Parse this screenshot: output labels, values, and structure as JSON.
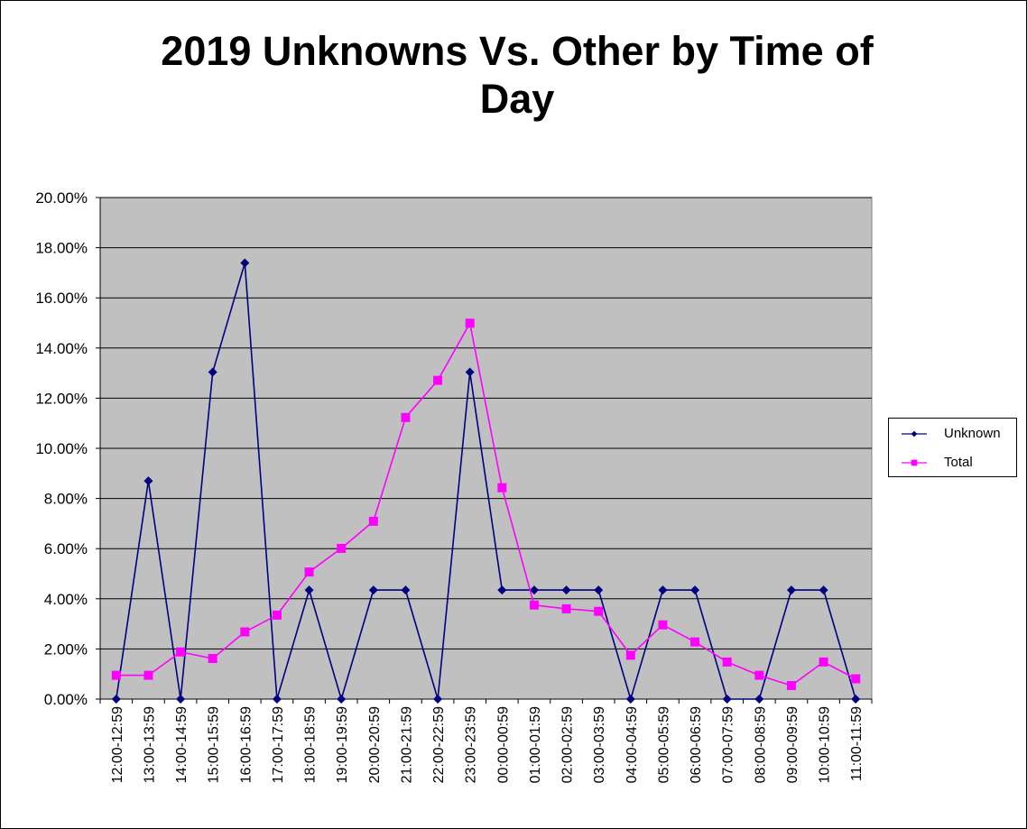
{
  "chart_data": {
    "type": "line",
    "title_lines": [
      "2019 Unknowns Vs. Other by Time of",
      "Day"
    ],
    "xlabel": "",
    "ylabel": "",
    "ylim": [
      0,
      0.2
    ],
    "y_ticks": [
      "0.00%",
      "2.00%",
      "4.00%",
      "6.00%",
      "8.00%",
      "10.00%",
      "12.00%",
      "14.00%",
      "16.00%",
      "18.00%",
      "20.00%"
    ],
    "grid": true,
    "legend_position": "right",
    "plot_background": "#C0C0C0",
    "categories": [
      "12:00-12:59",
      "13:00-13:59",
      "14:00-14:59",
      "15:00-15:59",
      "16:00-16:59",
      "17:00-17:59",
      "18:00-18:59",
      "19:00-19:59",
      "20:00-20:59",
      "21:00-21:59",
      "22:00-22:59",
      "23:00-23:59",
      "00:00-00:59",
      "01:00-01:59",
      "02:00-02:59",
      "03:00-03:59",
      "04:00-04:59",
      "05:00-05:59",
      "06:00-06:59",
      "07:00-07:59",
      "08:00-08:59",
      "09:00-09:59",
      "10:00-10:59",
      "11:00-11:59"
    ],
    "series": [
      {
        "name": "Unknown",
        "color": "#000080",
        "marker": "diamond",
        "values": [
          0,
          0.087,
          0,
          0.1304,
          0.1739,
          0,
          0.0435,
          0,
          0.0435,
          0.0435,
          0,
          0.1304,
          0.0435,
          0.0435,
          0.0435,
          0.0435,
          0,
          0.0435,
          0.0435,
          0,
          0,
          0.0435,
          0.0435,
          0
        ]
      },
      {
        "name": "Total",
        "color": "#FF00FF",
        "marker": "square",
        "values": [
          0.0095,
          0.0095,
          0.0188,
          0.0162,
          0.0268,
          0.0335,
          0.0507,
          0.0601,
          0.0709,
          0.1123,
          0.1271,
          0.1499,
          0.0843,
          0.0375,
          0.036,
          0.035,
          0.0175,
          0.0296,
          0.0228,
          0.0148,
          0.0095,
          0.0054,
          0.0148,
          0.0081
        ]
      }
    ]
  }
}
